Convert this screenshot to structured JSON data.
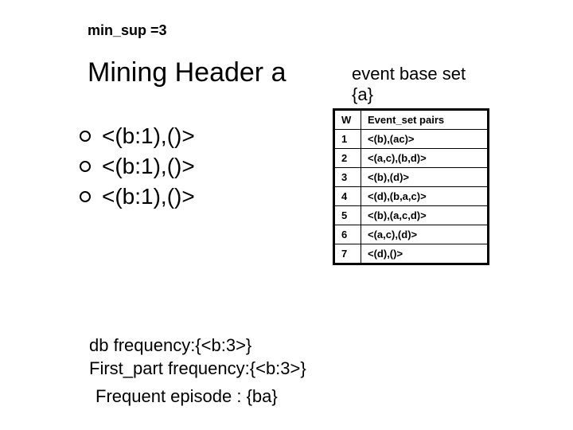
{
  "minsup": "min_sup =3",
  "title": "Mining Header a",
  "eventbase_line1": "event base set",
  "eventbase_line2": "{a}",
  "bullets": [
    "<(b:1),()>",
    "<(b:1),()>",
    "<(b:1),()>"
  ],
  "table": {
    "header_w": "W",
    "header_pairs": "Event_set pairs",
    "rows": [
      {
        "w": "1",
        "pairs": "<(b),(ac)>"
      },
      {
        "w": "2",
        "pairs": "<(a,c),(b,d)>"
      },
      {
        "w": "3",
        "pairs": "<(b),(d)>"
      },
      {
        "w": "4",
        "pairs": "<(d),(b,a,c)>"
      },
      {
        "w": "5",
        "pairs": "<(b),(a,c,d)>"
      },
      {
        "w": "6",
        "pairs": "<(a,c),(d)>"
      },
      {
        "w": "7",
        "pairs": "<(d),()>"
      }
    ]
  },
  "dbfreq": "db frequency:{<b:3>}",
  "firstpart": "First_part frequency:{<b:3>}",
  "freqep": "Frequent episode : {ba}",
  "colors": {
    "background": "#ffffff",
    "text": "#000000",
    "table_border": "#000000"
  }
}
